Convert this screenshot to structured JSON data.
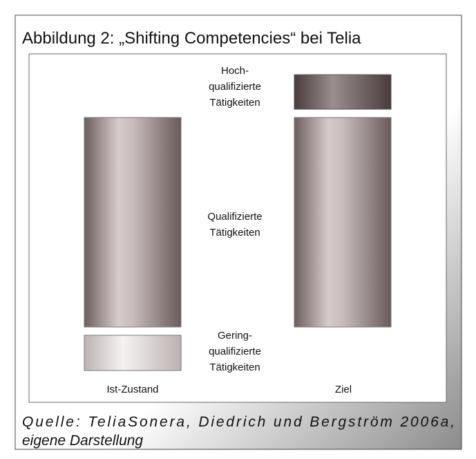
{
  "title": "Abbildung 2: „Shifting Competencies“ bei Telia",
  "levels": [
    {
      "lines": [
        "Hoch-",
        "qualifizierte",
        "Tätigkeiten"
      ]
    },
    {
      "lines": [
        "Qualifizierte",
        "Tätigkeiten"
      ]
    },
    {
      "lines": [
        "Gering-",
        "qualifizierte",
        "Tätigkeiten"
      ]
    }
  ],
  "columns": [
    "Ist-Zustand",
    "Ziel"
  ],
  "caption": [
    "Quelle: TeliaSonera, Diedrich und Bergström 2006a,",
    "eigene Darstellung"
  ]
}
